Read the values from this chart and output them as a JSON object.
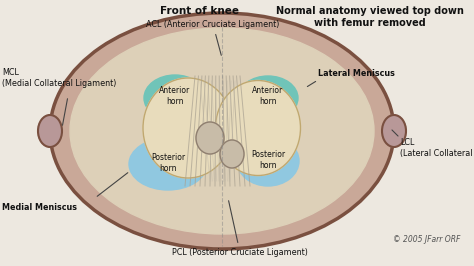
{
  "bg_color": "#ede8e0",
  "title_left": "Front of knee",
  "title_right": "Normal anatomy viewed top down\nwith femur removed",
  "copyright": "© 2005 JFarr ORF",
  "labels": {
    "ACL": "ACL (Anterior Cruciate Ligament)",
    "PCL": "PCL (Posterior Cruciate Ligament)",
    "MCL": "MCL\n(Medial Collateral Ligament)",
    "LCL": "LCL\n(Lateral Collateral Ligament)",
    "medial_meniscus": "Medial Meniscus",
    "lateral_meniscus": "Lateral Meniscus",
    "ant_horn_left": "Anterior\nhorn",
    "ant_horn_right": "Anterior\nhorn",
    "post_horn_left": "Posterior\nhorn",
    "post_horn_right": "Posterior\nhorn"
  },
  "font_size_title": 7.5,
  "font_size_label": 5.8,
  "font_size_horn": 5.5,
  "font_size_copyright": 5.5
}
